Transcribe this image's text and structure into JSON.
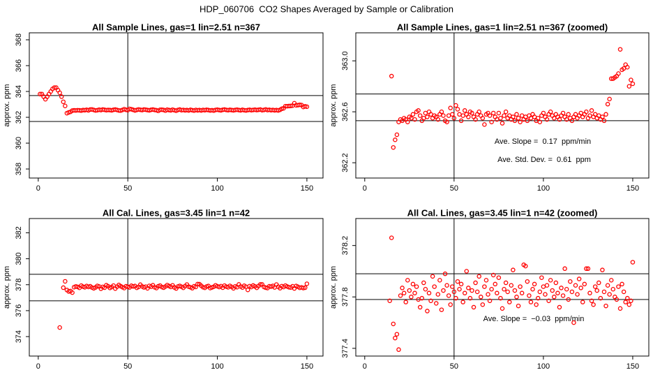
{
  "title": "HDP_060706  CO2 Shapes Averaged by Sample or Calibration",
  "chart_data": [
    {
      "type": "scatter",
      "title": "All Sample Lines, gas=1 lin=2.51 n=367",
      "y_label": "approx. ppm",
      "color": "#ff0000",
      "xlim": [
        -5,
        159
      ],
      "ylim": [
        357.3,
        368.54
      ],
      "xticks": [
        0,
        50,
        100,
        150
      ],
      "yticks": [
        358,
        360,
        362,
        364,
        366,
        368
      ],
      "vline": 50,
      "hlines": [
        363.68,
        361.68
      ],
      "x": [
        1,
        2,
        3,
        4,
        5,
        6,
        7,
        8,
        9,
        10,
        11,
        12,
        13,
        14,
        15,
        16,
        17,
        18,
        19,
        20,
        21,
        22,
        23,
        24,
        25,
        26,
        27,
        28,
        29,
        30,
        31,
        32,
        33,
        34,
        35,
        36,
        37,
        38,
        39,
        40,
        41,
        42,
        43,
        44,
        45,
        46,
        47,
        48,
        49,
        50,
        51,
        52,
        53,
        54,
        55,
        56,
        57,
        58,
        59,
        60,
        61,
        62,
        63,
        64,
        65,
        66,
        67,
        68,
        69,
        70,
        71,
        72,
        73,
        74,
        75,
        76,
        77,
        78,
        79,
        80,
        81,
        82,
        83,
        84,
        85,
        86,
        87,
        88,
        89,
        90,
        91,
        92,
        93,
        94,
        95,
        96,
        97,
        98,
        99,
        100,
        101,
        102,
        103,
        104,
        105,
        106,
        107,
        108,
        109,
        110,
        111,
        112,
        113,
        114,
        115,
        116,
        117,
        118,
        119,
        120,
        121,
        122,
        123,
        124,
        125,
        126,
        127,
        128,
        129,
        130,
        131,
        132,
        133,
        134,
        135,
        136,
        137,
        138,
        139,
        140,
        141,
        142,
        143,
        144,
        145,
        146,
        147,
        148,
        149,
        150
      ],
      "values": [
        363.8,
        363.8,
        363.6,
        363.4,
        363.6,
        363.8,
        364.0,
        364.2,
        364.3,
        364.3,
        364.1,
        363.9,
        363.6,
        363.2,
        362.88,
        362.32,
        362.38,
        362.42,
        362.52,
        362.54,
        362.53,
        362.55,
        362.54,
        362.52,
        362.56,
        362.55,
        362.58,
        362.54,
        362.6,
        362.61,
        362.57,
        362.53,
        362.55,
        362.59,
        362.56,
        362.6,
        362.58,
        362.55,
        362.57,
        362.56,
        362.54,
        362.58,
        362.6,
        362.57,
        362.53,
        362.52,
        362.57,
        362.63,
        362.58,
        362.55,
        362.65,
        362.62,
        362.58,
        362.53,
        362.57,
        362.61,
        362.58,
        362.56,
        362.6,
        362.59,
        362.56,
        362.54,
        362.58,
        362.6,
        362.57,
        362.55,
        362.5,
        362.58,
        362.59,
        362.57,
        362.52,
        362.59,
        362.56,
        362.54,
        362.59,
        362.55,
        362.51,
        362.57,
        362.6,
        362.55,
        362.57,
        362.54,
        362.56,
        362.53,
        362.58,
        362.55,
        362.52,
        362.57,
        362.54,
        362.56,
        362.53,
        362.57,
        362.55,
        362.58,
        362.56,
        362.53,
        362.55,
        362.52,
        362.57,
        362.59,
        362.56,
        362.54,
        362.58,
        362.6,
        362.57,
        362.55,
        362.58,
        362.56,
        362.54,
        362.57,
        362.59,
        362.56,
        362.54,
        362.58,
        362.55,
        362.53,
        362.56,
        362.58,
        362.55,
        362.57,
        362.59,
        362.56,
        362.58,
        362.6,
        362.55,
        362.57,
        362.61,
        362.56,
        362.58,
        362.55,
        362.57,
        362.54,
        362.56,
        362.53,
        362.58,
        362.66,
        362.7,
        362.86,
        362.86,
        362.87,
        362.88,
        362.9,
        363.09,
        362.93,
        362.94,
        362.97,
        362.95,
        362.8,
        362.85,
        362.82
      ]
    },
    {
      "type": "scatter",
      "title": "All Sample Lines, gas=1 lin=2.51 n=367 (zoomed)",
      "y_label": "approx. ppm",
      "color": "#ff0000",
      "xlim": [
        -5,
        159
      ],
      "ylim": [
        362.08,
        363.22
      ],
      "xticks": [
        0,
        50,
        100,
        150
      ],
      "yticks": [
        362.2,
        362.6,
        {
          "value": 363,
          "label": "363.0"
        }
      ],
      "vline": 50,
      "hlines": [
        362.74,
        362.53
      ],
      "annotations": [
        "Ave. Slope =  0.17  ppm/min",
        "Ave. Std. Dev. =  0.61  ppm"
      ],
      "x": [
        15,
        16,
        17,
        18,
        19,
        20,
        21,
        22,
        23,
        24,
        25,
        26,
        27,
        28,
        29,
        30,
        31,
        32,
        33,
        34,
        35,
        36,
        37,
        38,
        39,
        40,
        41,
        42,
        43,
        44,
        45,
        46,
        47,
        48,
        49,
        50,
        51,
        52,
        53,
        54,
        55,
        56,
        57,
        58,
        59,
        60,
        61,
        62,
        63,
        64,
        65,
        66,
        67,
        68,
        69,
        70,
        71,
        72,
        73,
        74,
        75,
        76,
        77,
        78,
        79,
        80,
        81,
        82,
        83,
        84,
        85,
        86,
        87,
        88,
        89,
        90,
        91,
        92,
        93,
        94,
        95,
        96,
        97,
        98,
        99,
        100,
        101,
        102,
        103,
        104,
        105,
        106,
        107,
        108,
        109,
        110,
        111,
        112,
        113,
        114,
        115,
        116,
        117,
        118,
        119,
        120,
        121,
        122,
        123,
        124,
        125,
        126,
        127,
        128,
        129,
        130,
        131,
        132,
        133,
        134,
        135,
        136,
        137,
        138,
        139,
        140,
        141,
        142,
        143,
        144,
        145,
        146,
        147,
        148,
        149,
        150
      ],
      "values": [
        362.88,
        362.32,
        362.38,
        362.42,
        362.52,
        362.54,
        362.53,
        362.55,
        362.54,
        362.52,
        362.56,
        362.55,
        362.58,
        362.54,
        362.6,
        362.61,
        362.57,
        362.53,
        362.55,
        362.59,
        362.56,
        362.6,
        362.58,
        362.55,
        362.57,
        362.56,
        362.54,
        362.58,
        362.6,
        362.57,
        362.53,
        362.52,
        362.57,
        362.63,
        362.58,
        362.55,
        362.65,
        362.62,
        362.58,
        362.53,
        362.57,
        362.61,
        362.58,
        362.56,
        362.6,
        362.59,
        362.56,
        362.54,
        362.58,
        362.6,
        362.57,
        362.55,
        362.5,
        362.58,
        362.59,
        362.57,
        362.52,
        362.59,
        362.56,
        362.54,
        362.59,
        362.55,
        362.51,
        362.57,
        362.6,
        362.55,
        362.57,
        362.54,
        362.56,
        362.53,
        362.58,
        362.55,
        362.52,
        362.57,
        362.54,
        362.56,
        362.53,
        362.57,
        362.55,
        362.58,
        362.56,
        362.53,
        362.55,
        362.52,
        362.57,
        362.59,
        362.56,
        362.54,
        362.58,
        362.6,
        362.57,
        362.55,
        362.58,
        362.56,
        362.54,
        362.57,
        362.59,
        362.56,
        362.54,
        362.58,
        362.55,
        362.53,
        362.56,
        362.58,
        362.55,
        362.57,
        362.59,
        362.56,
        362.58,
        362.6,
        362.55,
        362.57,
        362.61,
        362.56,
        362.58,
        362.55,
        362.57,
        362.54,
        362.56,
        362.53,
        362.58,
        362.66,
        362.7,
        362.86,
        362.86,
        362.87,
        362.88,
        362.9,
        363.09,
        362.93,
        362.94,
        362.97,
        362.95,
        362.8,
        362.85,
        362.82
      ]
    },
    {
      "type": "scatter",
      "title": "All Cal. Lines, gas=3.45 lin=1 n=42",
      "y_label": "approx. ppm",
      "color": "#ff0000",
      "xlim": [
        -5,
        159
      ],
      "ylim": [
        372.5,
        383.1
      ],
      "xticks": [
        0,
        50,
        100,
        150
      ],
      "yticks": [
        374,
        376,
        378,
        380,
        382
      ],
      "vline": 50,
      "hlines": [
        378.8,
        376.76
      ],
      "x": [
        12,
        14,
        15,
        16,
        17,
        18,
        19,
        20,
        21,
        22,
        23,
        24,
        25,
        26,
        27,
        28,
        29,
        30,
        31,
        32,
        33,
        34,
        35,
        36,
        37,
        38,
        39,
        40,
        41,
        42,
        43,
        44,
        45,
        46,
        47,
        48,
        49,
        50,
        51,
        52,
        53,
        54,
        55,
        56,
        57,
        58,
        59,
        60,
        61,
        62,
        63,
        64,
        65,
        66,
        67,
        68,
        69,
        70,
        71,
        72,
        73,
        74,
        75,
        76,
        77,
        78,
        79,
        80,
        81,
        82,
        83,
        84,
        85,
        86,
        87,
        88,
        89,
        90,
        91,
        92,
        93,
        94,
        95,
        96,
        97,
        98,
        99,
        100,
        101,
        102,
        103,
        104,
        105,
        106,
        107,
        108,
        109,
        110,
        111,
        112,
        113,
        114,
        115,
        116,
        117,
        118,
        119,
        120,
        121,
        122,
        123,
        124,
        125,
        126,
        127,
        128,
        129,
        130,
        131,
        132,
        133,
        134,
        135,
        136,
        137,
        138,
        139,
        140,
        141,
        142,
        143,
        144,
        145,
        146,
        147,
        148,
        149,
        150
      ],
      "values": [
        374.7,
        377.77,
        378.26,
        377.59,
        377.48,
        377.51,
        377.39,
        377.81,
        377.87,
        377.83,
        377.76,
        377.93,
        377.85,
        377.8,
        377.9,
        377.83,
        377.88,
        377.78,
        377.72,
        377.79,
        377.91,
        377.86,
        377.69,
        377.83,
        377.77,
        377.96,
        377.88,
        377.75,
        377.82,
        377.93,
        377.7,
        377.85,
        377.98,
        377.89,
        377.81,
        377.74,
        377.88,
        377.84,
        377.79,
        377.92,
        377.86,
        377.9,
        377.76,
        377.83,
        378.0,
        377.87,
        377.79,
        377.85,
        377.72,
        377.91,
        377.84,
        377.96,
        377.8,
        377.74,
        377.88,
        377.93,
        377.82,
        377.77,
        377.86,
        377.97,
        377.9,
        377.83,
        377.95,
        377.79,
        377.71,
        377.86,
        377.91,
        377.84,
        377.76,
        377.89,
        378.01,
        377.85,
        377.8,
        377.73,
        377.88,
        377.83,
        378.05,
        378.04,
        377.92,
        377.81,
        377.76,
        377.86,
        377.9,
        377.74,
        377.79,
        377.84,
        377.95,
        377.88,
        377.82,
        377.89,
        377.77,
        377.93,
        377.85,
        377.8,
        377.91,
        377.83,
        377.72,
        377.87,
        377.81,
        378.02,
        377.86,
        377.78,
        377.92,
        377.84,
        377.6,
        377.89,
        377.82,
        377.94,
        377.87,
        377.76,
        377.9,
        378.02,
        378.02,
        377.83,
        377.77,
        377.74,
        377.88,
        377.85,
        377.91,
        377.79,
        378.01,
        377.84,
        377.73,
        377.89,
        377.82,
        377.93,
        377.86,
        377.8,
        377.78,
        377.88,
        377.71,
        377.9,
        377.84,
        377.76,
        377.79,
        377.74,
        377.77,
        378.07
      ]
    },
    {
      "type": "scatter",
      "title": "All Cal. Lines, gas=3.45 lin=1 n=42 (zoomed)",
      "y_label": "approx. ppm",
      "color": "#ff0000",
      "xlim": [
        -5,
        159
      ],
      "ylim": [
        377.34,
        378.41
      ],
      "xticks": [
        0,
        50,
        100,
        150
      ],
      "yticks": [
        377.4,
        377.8,
        378.2
      ],
      "vline": 50,
      "hlines": [
        377.98,
        377.78
      ],
      "annotations": [
        "Ave. Slope =  −0.03  ppm/min"
      ],
      "x": [
        14,
        15,
        16,
        17,
        18,
        19,
        20,
        21,
        22,
        23,
        24,
        25,
        26,
        27,
        28,
        29,
        30,
        31,
        32,
        33,
        34,
        35,
        36,
        37,
        38,
        39,
        40,
        41,
        42,
        43,
        44,
        45,
        46,
        47,
        48,
        49,
        50,
        51,
        52,
        53,
        54,
        55,
        56,
        57,
        58,
        59,
        60,
        61,
        62,
        63,
        64,
        65,
        66,
        67,
        68,
        69,
        70,
        71,
        72,
        73,
        74,
        75,
        76,
        77,
        78,
        79,
        80,
        81,
        82,
        83,
        84,
        85,
        86,
        87,
        88,
        89,
        90,
        91,
        92,
        93,
        94,
        95,
        96,
        97,
        98,
        99,
        100,
        101,
        102,
        103,
        104,
        105,
        106,
        107,
        108,
        109,
        110,
        111,
        112,
        113,
        114,
        115,
        116,
        117,
        118,
        119,
        120,
        121,
        122,
        123,
        124,
        125,
        126,
        127,
        128,
        129,
        130,
        131,
        132,
        133,
        134,
        135,
        136,
        137,
        138,
        139,
        140,
        141,
        142,
        143,
        144,
        145,
        146,
        147,
        148,
        149,
        150
      ],
      "values": [
        377.77,
        378.26,
        377.59,
        377.48,
        377.51,
        377.39,
        377.81,
        377.87,
        377.83,
        377.76,
        377.93,
        377.85,
        377.8,
        377.9,
        377.83,
        377.88,
        377.78,
        377.72,
        377.79,
        377.91,
        377.86,
        377.69,
        377.83,
        377.77,
        377.96,
        377.88,
        377.75,
        377.82,
        377.93,
        377.7,
        377.85,
        377.98,
        377.89,
        377.81,
        377.74,
        377.88,
        377.84,
        377.79,
        377.92,
        377.86,
        377.9,
        377.76,
        377.83,
        378.0,
        377.87,
        377.79,
        377.85,
        377.72,
        377.91,
        377.84,
        377.96,
        377.8,
        377.74,
        377.88,
        377.93,
        377.82,
        377.77,
        377.86,
        377.97,
        377.9,
        377.83,
        377.95,
        377.79,
        377.71,
        377.86,
        377.91,
        377.84,
        377.76,
        377.89,
        378.01,
        377.85,
        377.8,
        377.73,
        377.88,
        377.83,
        378.05,
        378.04,
        377.92,
        377.81,
        377.76,
        377.86,
        377.9,
        377.74,
        377.79,
        377.84,
        377.95,
        377.88,
        377.82,
        377.89,
        377.77,
        377.93,
        377.85,
        377.8,
        377.91,
        377.83,
        377.72,
        377.87,
        377.81,
        378.02,
        377.86,
        377.78,
        377.92,
        377.84,
        377.6,
        377.89,
        377.82,
        377.94,
        377.87,
        377.76,
        377.9,
        378.02,
        378.02,
        377.83,
        377.77,
        377.74,
        377.88,
        377.85,
        377.91,
        377.79,
        378.01,
        377.84,
        377.73,
        377.89,
        377.82,
        377.93,
        377.86,
        377.8,
        377.78,
        377.88,
        377.71,
        377.9,
        377.84,
        377.76,
        377.79,
        377.74,
        377.77,
        378.07
      ]
    }
  ]
}
